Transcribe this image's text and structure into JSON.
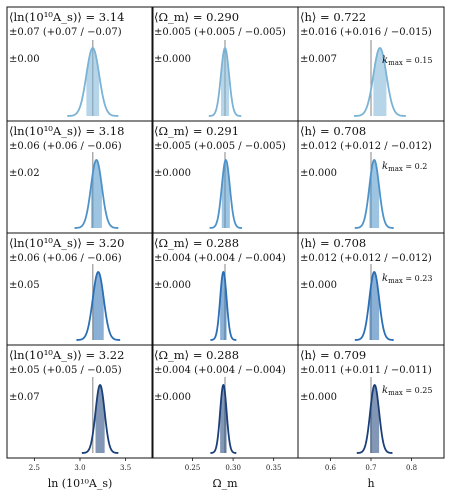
{
  "chart_data": {
    "type": "grid-of-posteriors",
    "rows": [
      {
        "kmax_label": "k",
        "kmax_sub": "max",
        "kmax_value": "= 0.15",
        "color": "#7ab3d6",
        "panels": [
          {
            "mean_line": "⟨ln(10¹⁰A_s)⟩ = 3.14",
            "err_line": "±0.07 (+0.07 / −0.07)",
            "bias_line": "±0.00",
            "mean": 3.14,
            "sigma": 0.07
          },
          {
            "mean_line": "⟨Ω_m⟩ = 0.290",
            "err_line": "±0.005 (+0.005 / −0.005)",
            "bias_line": "±0.000",
            "mean": 0.29,
            "sigma": 0.005
          },
          {
            "mean_line": "⟨h⟩ = 0.722",
            "err_line": "±0.016 (+0.016 / −0.015)",
            "bias_line": "±0.007",
            "mean": 0.722,
            "sigma": 0.016
          }
        ]
      },
      {
        "kmax_label": "k",
        "kmax_sub": "max",
        "kmax_value": "= 0.2",
        "color": "#4d93c9",
        "panels": [
          {
            "mean_line": "⟨ln(10¹⁰A_s)⟩ = 3.18",
            "err_line": "±0.06 (+0.06 / −0.06)",
            "bias_line": "±0.02",
            "mean": 3.18,
            "sigma": 0.06
          },
          {
            "mean_line": "⟨Ω_m⟩ = 0.291",
            "err_line": "±0.005 (+0.005 / −0.005)",
            "bias_line": "±0.000",
            "mean": 0.291,
            "sigma": 0.005
          },
          {
            "mean_line": "⟨h⟩ = 0.708",
            "err_line": "±0.012 (+0.012 / −0.012)",
            "bias_line": "±0.000",
            "mean": 0.708,
            "sigma": 0.012
          }
        ]
      },
      {
        "kmax_label": "k",
        "kmax_sub": "max",
        "kmax_value": "= 0.23",
        "color": "#2a6fb5",
        "panels": [
          {
            "mean_line": "⟨ln(10¹⁰A_s)⟩ = 3.20",
            "err_line": "±0.06 (+0.06 / −0.06)",
            "bias_line": "±0.05",
            "mean": 3.2,
            "sigma": 0.06
          },
          {
            "mean_line": "⟨Ω_m⟩ = 0.288",
            "err_line": "±0.004 (+0.004 / −0.004)",
            "bias_line": "±0.000",
            "mean": 0.288,
            "sigma": 0.004
          },
          {
            "mean_line": "⟨h⟩ = 0.708",
            "err_line": "±0.012 (+0.012 / −0.012)",
            "bias_line": "±0.000",
            "mean": 0.708,
            "sigma": 0.012
          }
        ]
      },
      {
        "kmax_label": "k",
        "kmax_sub": "max",
        "kmax_value": "= 0.25",
        "color": "#1b3f78",
        "panels": [
          {
            "mean_line": "⟨ln(10¹⁰A_s)⟩ = 3.22",
            "err_line": "±0.05 (+0.05 / −0.05)",
            "bias_line": "±0.07",
            "mean": 3.22,
            "sigma": 0.05
          },
          {
            "mean_line": "⟨Ω_m⟩ = 0.288",
            "err_line": "±0.004 (+0.004 / −0.004)",
            "bias_line": "±0.000",
            "mean": 0.288,
            "sigma": 0.004
          },
          {
            "mean_line": "⟨h⟩ = 0.709",
            "err_line": "±0.011 (+0.011 / −0.011)",
            "bias_line": "±0.000",
            "mean": 0.709,
            "sigma": 0.011
          }
        ]
      }
    ],
    "columns": [
      {
        "xlabel": "ln (10¹⁰A_s)",
        "xlim": [
          2.2,
          3.8
        ],
        "ticks": [
          2.5,
          3.0,
          3.5
        ],
        "tick_labels": [
          "2.5",
          "3.0",
          "3.5"
        ],
        "truth": 3.14
      },
      {
        "xlabel": "Ω_m",
        "xlim": [
          0.2,
          0.38
        ],
        "ticks": [
          0.25,
          0.3,
          0.35
        ],
        "tick_labels": [
          "0.25",
          "0.30",
          "0.35"
        ],
        "truth": 0.29
      },
      {
        "xlabel": "h",
        "xlim": [
          0.52,
          0.88
        ],
        "ticks": [
          0.6,
          0.7,
          0.8
        ],
        "tick_labels": [
          "0.6",
          "0.7",
          "0.8"
        ],
        "truth": 0.7
      }
    ],
    "truth_line_color": "#999999",
    "grid": false
  }
}
